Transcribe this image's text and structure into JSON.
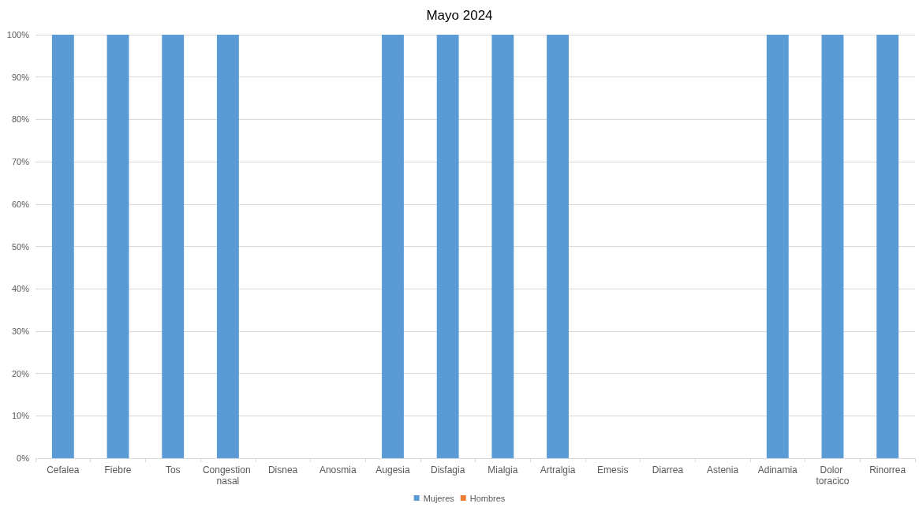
{
  "chart_data": {
    "type": "bar",
    "title": "Mayo 2024",
    "stacked": true,
    "grid": "y",
    "legend": "bottom",
    "categories": [
      "Cefalea",
      "Fiebre",
      "Tos",
      "Congestion nasal",
      "Disnea",
      "Anosmia",
      "Augesia",
      "Disfagia",
      "Mialgia",
      "Artralgia",
      "Emesis",
      "Diarrea",
      "Astenia",
      "Adinamia",
      "Dolor toracico",
      "Rinorrea"
    ],
    "series": [
      {
        "name": "Mujeres",
        "color": "#5b9bd5",
        "values": [
          100,
          100,
          100,
          100,
          null,
          null,
          100,
          100,
          100,
          100,
          null,
          null,
          null,
          100,
          100,
          100
        ]
      },
      {
        "name": "Hombres",
        "color": "#ed7d31",
        "values": [
          0,
          0,
          0,
          0,
          null,
          null,
          0,
          0,
          0,
          0,
          null,
          null,
          null,
          0,
          0,
          0
        ]
      }
    ],
    "ylim": [
      0,
      100
    ],
    "yticks": [
      {
        "value": 0,
        "label": "0%"
      },
      {
        "value": 10,
        "label": "10%"
      },
      {
        "value": 20,
        "label": "20%"
      },
      {
        "value": 30,
        "label": "30%"
      },
      {
        "value": 40,
        "label": "40%"
      },
      {
        "value": 50,
        "label": "50%"
      },
      {
        "value": 60,
        "label": "60%"
      },
      {
        "value": 70,
        "label": "70%"
      },
      {
        "value": 80,
        "label": "80%"
      },
      {
        "value": 90,
        "label": "90%"
      },
      {
        "value": 100,
        "label": "100%"
      }
    ]
  }
}
